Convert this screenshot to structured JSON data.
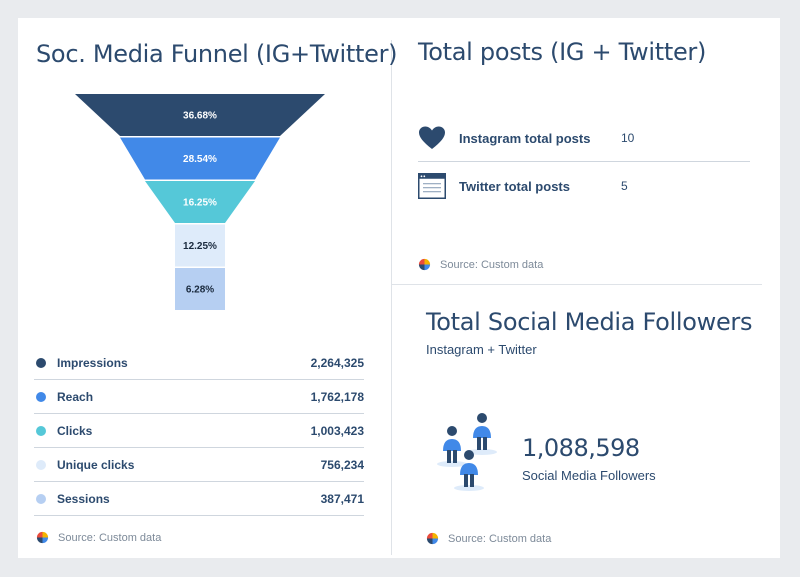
{
  "funnel": {
    "title": "Soc. Media Funnel (IG+Twitter)",
    "source": "Source: Custom data"
  },
  "posts": {
    "title": "Total posts (IG + Twitter)",
    "rows": [
      {
        "label": "Instagram total posts",
        "value": "10",
        "icon": "heart-icon"
      },
      {
        "label": "Twitter total posts",
        "value": "5",
        "icon": "browser-window-icon"
      }
    ],
    "source": "Source: Custom data"
  },
  "followers": {
    "title": "Total Social Media Followers",
    "subtitle": "Instagram + Twitter",
    "value": "1,088,598",
    "label": "Social Media Followers",
    "source": "Source: Custom data"
  },
  "colors": {
    "impressions": "#2c4a6e",
    "reach": "#4189e8",
    "clicks": "#55c8d8",
    "unique_clicks": "#deebfa",
    "sessions": "#b6cff2"
  },
  "chart_data": {
    "type": "funnel",
    "title": "Soc. Media Funnel (IG+Twitter)",
    "categories": [
      "Impressions",
      "Reach",
      "Clicks",
      "Unique clicks",
      "Sessions"
    ],
    "values": [
      2264325,
      1762178,
      1003423,
      756234,
      387471
    ],
    "value_labels": [
      "2,264,325",
      "1,762,178",
      "1,003,423",
      "756,234",
      "387,471"
    ],
    "percent_labels": [
      "36.68%",
      "28.54%",
      "16.25%",
      "12.25%",
      "6.28%"
    ],
    "colors": [
      "#2c4a6e",
      "#4189e8",
      "#55c8d8",
      "#deebfa",
      "#b6cff2"
    ],
    "label_colors": [
      "#ffffff",
      "#ffffff",
      "#ffffff",
      "#1a2a3e",
      "#1a2a3e"
    ],
    "legend": "bottom"
  }
}
